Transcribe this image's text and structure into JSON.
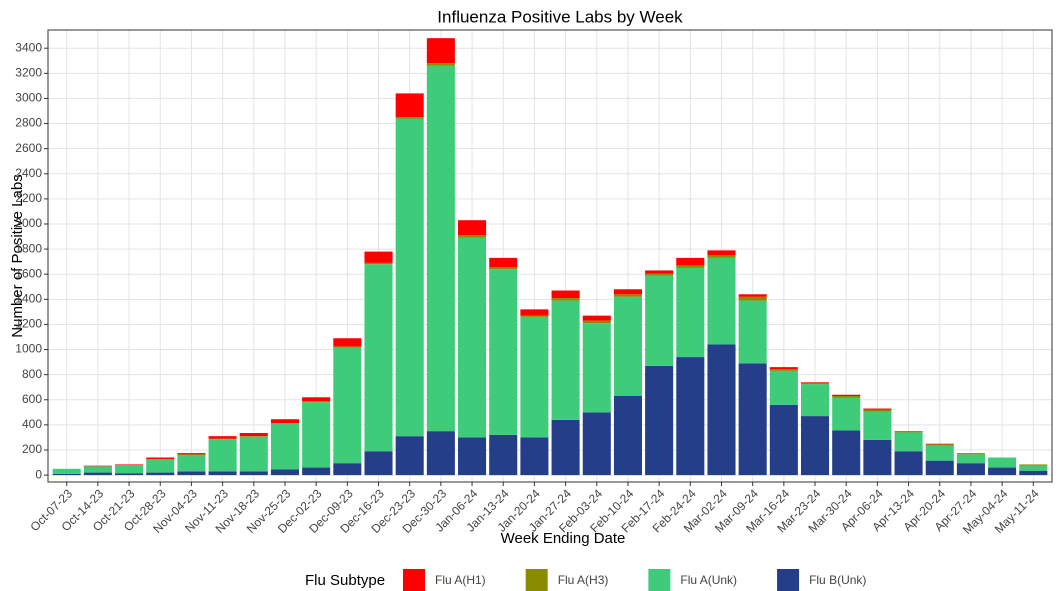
{
  "chart_data": {
    "type": "stacked-bar",
    "title": "Influenza Positive Labs by Week",
    "x_label": "Week Ending Date",
    "y_label": "Number of Positive Labs",
    "legend_title": "Flu Subtype",
    "categories": [
      "Oct-07-23",
      "Oct-14-23",
      "Oct-21-23",
      "Oct-28-23",
      "Nov-04-23",
      "Nov-11-23",
      "Nov-18-23",
      "Nov-25-23",
      "Dec-02-23",
      "Dec-09-23",
      "Dec-16-23",
      "Dec-23-23",
      "Dec-30-23",
      "Jan-06-24",
      "Jan-13-24",
      "Jan-20-24",
      "Jan-27-24",
      "Feb-03-24",
      "Feb-10-24",
      "Feb-17-24",
      "Feb-24-24",
      "Mar-02-24",
      "Mar-09-24",
      "Mar-16-24",
      "Mar-23-24",
      "Mar-30-24",
      "Apr-06-24",
      "Apr-13-24",
      "Apr-20-24",
      "Apr-27-24",
      "May-04-24",
      "May-11-24"
    ],
    "series": [
      {
        "name": "Flu A(H1)",
        "color": "#ff0000",
        "values": [
          0,
          5,
          5,
          12,
          10,
          20,
          25,
          30,
          30,
          65,
          90,
          190,
          200,
          120,
          75,
          50,
          60,
          40,
          40,
          25,
          60,
          40,
          20,
          15,
          5,
          10,
          10,
          5,
          5,
          0,
          0,
          0
        ]
      },
      {
        "name": "Flu A(H3)",
        "color": "#8b8b00",
        "values": [
          0,
          0,
          0,
          3,
          5,
          5,
          5,
          5,
          10,
          10,
          10,
          10,
          20,
          20,
          15,
          10,
          20,
          20,
          20,
          15,
          20,
          20,
          30,
          15,
          10,
          15,
          15,
          5,
          10,
          10,
          0,
          10
        ]
      },
      {
        "name": "Flu A(Unk)",
        "color": "#3fcc7a",
        "values": [
          40,
          50,
          65,
          105,
          130,
          255,
          275,
          365,
          520,
          920,
          1490,
          2530,
          2910,
          1590,
          1320,
          960,
          950,
          710,
          790,
          720,
          710,
          690,
          500,
          270,
          255,
          260,
          225,
          150,
          120,
          70,
          80,
          40
        ]
      },
      {
        "name": "Flu B(Unk)",
        "color": "#253e8a",
        "values": [
          10,
          20,
          15,
          20,
          30,
          30,
          30,
          45,
          60,
          95,
          190,
          310,
          350,
          300,
          320,
          300,
          440,
          500,
          630,
          870,
          940,
          1040,
          890,
          560,
          470,
          355,
          280,
          190,
          115,
          95,
          60,
          35
        ]
      }
    ],
    "ylim": [
      -55,
      3545
    ],
    "yticks": [
      0,
      200,
      400,
      600,
      800,
      1000,
      1200,
      1400,
      1600,
      1800,
      2000,
      2200,
      2400,
      2600,
      2800,
      3000,
      3200,
      3400
    ],
    "grid": true
  }
}
